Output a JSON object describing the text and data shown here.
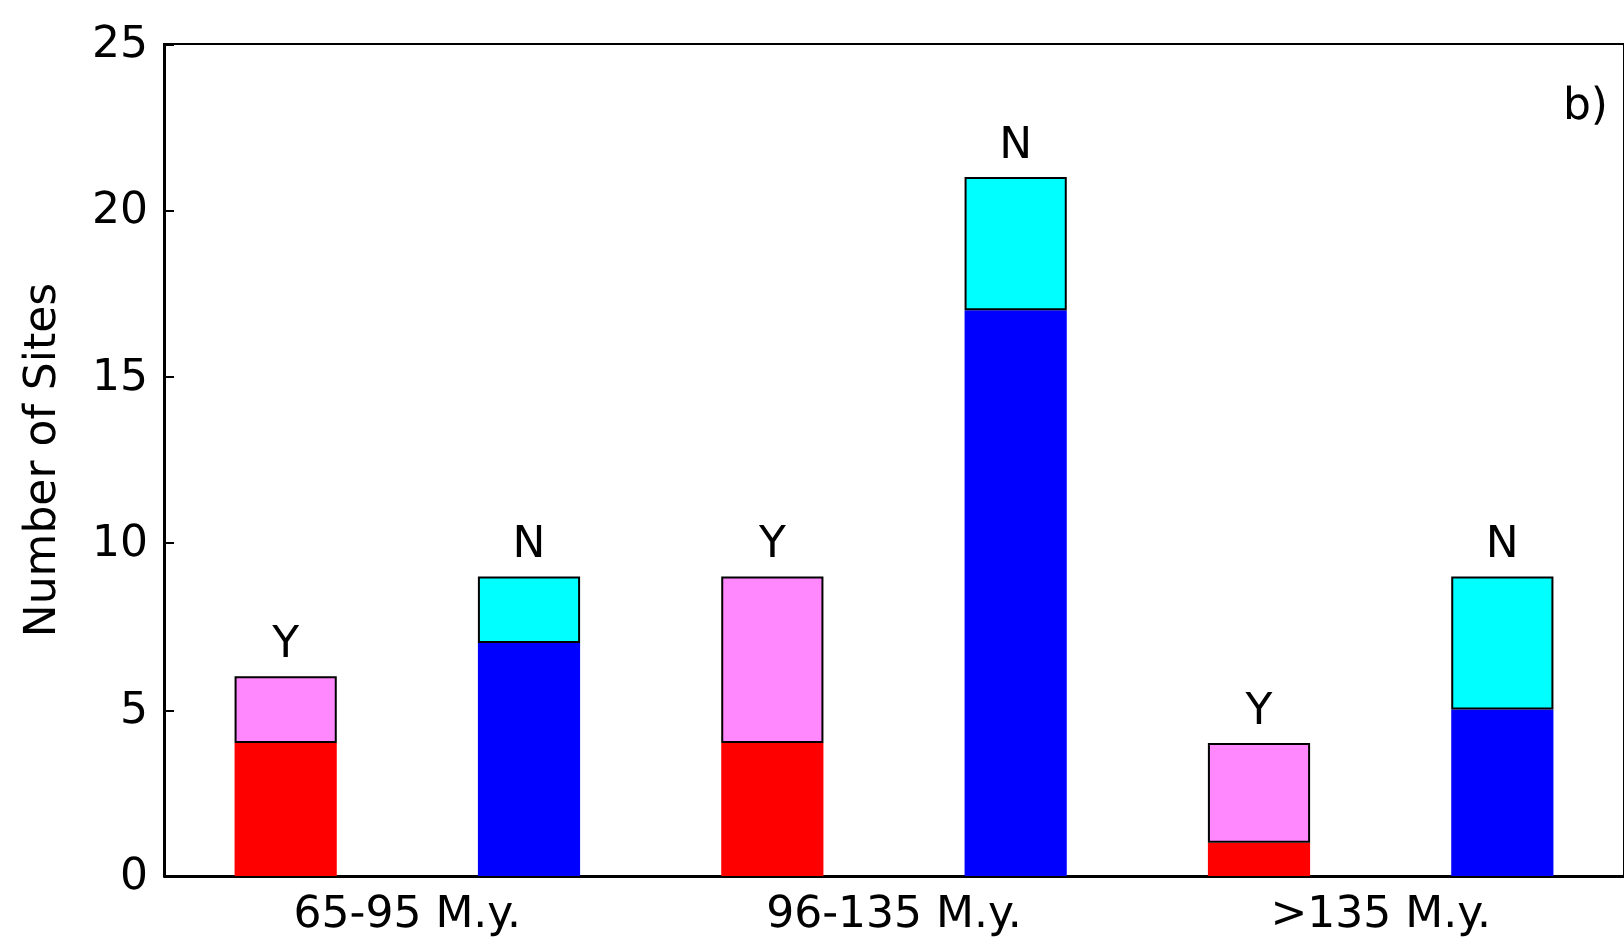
{
  "chart_data": {
    "type": "bar",
    "stacked": true,
    "ylabel": "Number of Sites",
    "categories": [
      "65-95 M.y.",
      null,
      "96-135 M.y.",
      null,
      ">135 M.y.",
      null
    ],
    "series": [
      {
        "color": "#ff0000",
        "values": [
          4,
          null,
          4,
          null,
          1,
          null
        ]
      },
      {
        "name": "Y",
        "color": "#ff88ff",
        "values": [
          2,
          null,
          5,
          null,
          3,
          null
        ]
      },
      {
        "color": "#0000ff",
        "values": [
          null,
          7,
          null,
          17,
          null,
          5
        ]
      },
      {
        "name": "N",
        "color": "#00ffff",
        "values": [
          null,
          2,
          null,
          4,
          null,
          4
        ]
      }
    ],
    "ylim": [
      0,
      25
    ],
    "yticks": [
      0,
      5,
      10,
      15,
      20,
      25
    ],
    "grid": false,
    "legend": false,
    "annotations": [
      "b)"
    ]
  }
}
